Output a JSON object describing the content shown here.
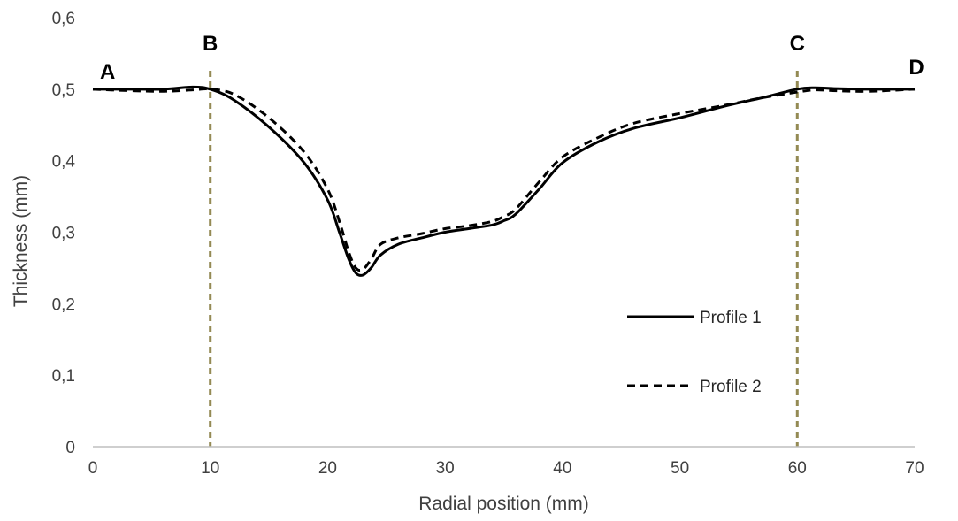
{
  "chart_data": {
    "type": "line",
    "title": "",
    "xlabel": "Radial position (mm)",
    "ylabel": "Thickness (mm)",
    "xlim": [
      0,
      70
    ],
    "ylim": [
      0,
      0.6
    ],
    "x_ticks": [
      {
        "value": 0,
        "label": "0"
      },
      {
        "value": 10,
        "label": "10"
      },
      {
        "value": 20,
        "label": "20"
      },
      {
        "value": 30,
        "label": "30"
      },
      {
        "value": 40,
        "label": "40"
      },
      {
        "value": 50,
        "label": "50"
      },
      {
        "value": 60,
        "label": "60"
      },
      {
        "value": 70,
        "label": "70"
      }
    ],
    "y_ticks": [
      {
        "value": 0,
        "label": "0"
      },
      {
        "value": 0.1,
        "label": "0,1"
      },
      {
        "value": 0.2,
        "label": "0,2"
      },
      {
        "value": 0.3,
        "label": "0,3"
      },
      {
        "value": 0.4,
        "label": "0,4"
      },
      {
        "value": 0.5,
        "label": "0,5"
      },
      {
        "value": 0.6,
        "label": "0,6"
      }
    ],
    "grid": false,
    "legend": "right",
    "series": [
      {
        "name": "Profile 1",
        "line_style": "solid",
        "color": "#000000",
        "x": [
          0,
          3,
          6,
          8.5,
          10,
          12,
          15,
          18,
          20,
          21,
          21.8,
          22.4,
          23,
          23.7,
          24.5,
          26,
          28,
          30,
          32,
          34,
          35,
          36,
          38,
          40,
          43,
          46,
          50,
          54,
          57,
          60,
          61.5,
          63,
          66,
          70
        ],
        "y": [
          0.5,
          0.5,
          0.5,
          0.503,
          0.5,
          0.485,
          0.447,
          0.397,
          0.345,
          0.3,
          0.262,
          0.243,
          0.24,
          0.25,
          0.268,
          0.283,
          0.292,
          0.3,
          0.305,
          0.31,
          0.316,
          0.325,
          0.36,
          0.397,
          0.426,
          0.445,
          0.46,
          0.477,
          0.488,
          0.5,
          0.502,
          0.501,
          0.5,
          0.5
        ]
      },
      {
        "name": "Profile 2",
        "line_style": "dashed",
        "color": "#000000",
        "x": [
          0,
          3,
          6,
          8.5,
          10,
          12,
          15,
          18,
          20,
          21,
          21.8,
          22.4,
          23,
          23.7,
          24.5,
          26,
          28,
          30,
          32,
          34,
          35,
          36,
          38,
          40,
          43,
          46,
          50,
          54,
          57,
          60,
          61.5,
          63,
          66,
          70
        ],
        "y": [
          0.5,
          0.498,
          0.497,
          0.499,
          0.5,
          0.493,
          0.46,
          0.412,
          0.36,
          0.315,
          0.272,
          0.25,
          0.248,
          0.262,
          0.283,
          0.292,
          0.298,
          0.305,
          0.309,
          0.315,
          0.322,
          0.332,
          0.37,
          0.405,
          0.432,
          0.452,
          0.466,
          0.478,
          0.488,
          0.496,
          0.499,
          0.498,
          0.497,
          0.5
        ]
      }
    ],
    "reference_lines": [
      {
        "x": 10,
        "style": "dashed",
        "color": "#948A54"
      },
      {
        "x": 60,
        "style": "dashed",
        "color": "#948A54"
      }
    ],
    "annotations": [
      {
        "text": "A",
        "x": 0,
        "y": 0.5
      },
      {
        "text": "B",
        "x": 10,
        "y": 0.6
      },
      {
        "text": "C",
        "x": 60,
        "y": 0.6
      },
      {
        "text": "D",
        "x": 70,
        "y": 0.5
      }
    ]
  }
}
